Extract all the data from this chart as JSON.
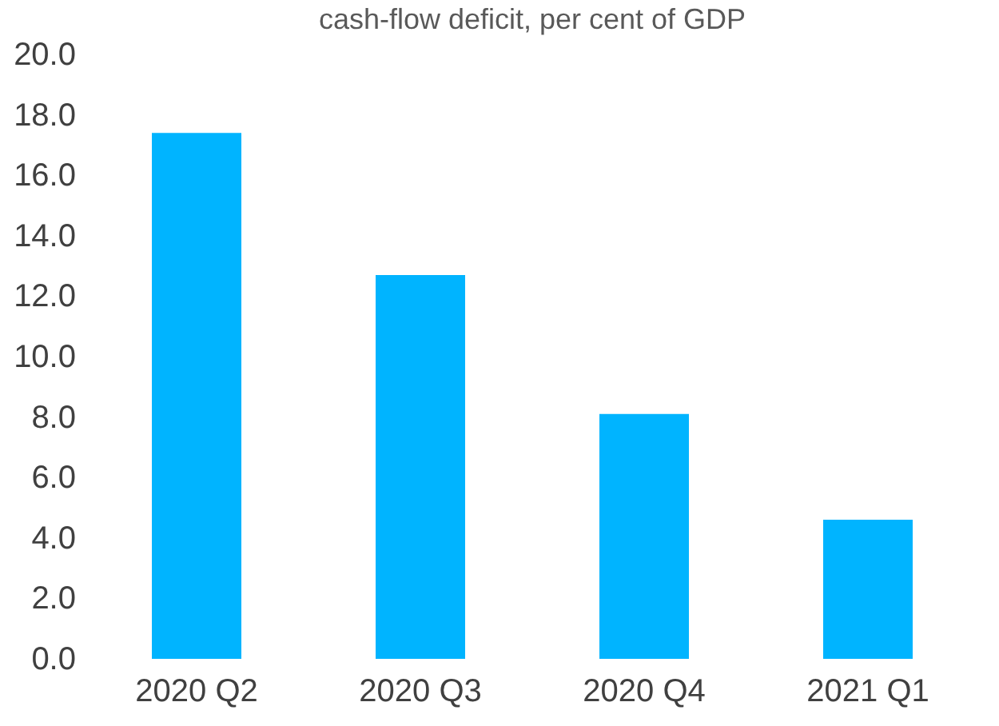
{
  "chart_data": {
    "type": "bar",
    "title": "cash-flow deficit, per cent of GDP",
    "categories": [
      "2020 Q2",
      "2020 Q3",
      "2020 Q4",
      "2021 Q1"
    ],
    "values": [
      17.4,
      12.7,
      8.1,
      4.6
    ],
    "color": "#00b4ff",
    "ylim": [
      0,
      20
    ],
    "yticks": [
      {
        "value": 0,
        "label": "0.0"
      },
      {
        "value": 2,
        "label": "2.0"
      },
      {
        "value": 4,
        "label": "4.0"
      },
      {
        "value": 6,
        "label": "6.0"
      },
      {
        "value": 8,
        "label": "8.0"
      },
      {
        "value": 10,
        "label": "10.0"
      },
      {
        "value": 12,
        "label": "12.0"
      },
      {
        "value": 14,
        "label": "14.0"
      },
      {
        "value": 16,
        "label": "16.0"
      },
      {
        "value": 18,
        "label": "18.0"
      },
      {
        "value": 20,
        "label": "20.0"
      }
    ]
  }
}
